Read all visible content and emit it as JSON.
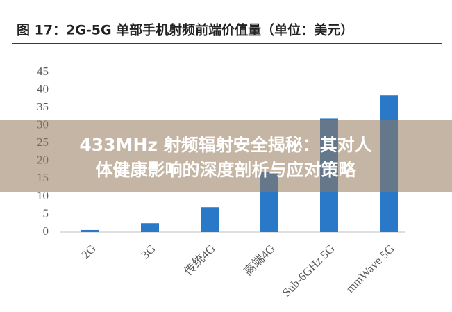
{
  "chart_data": {
    "type": "bar",
    "title": "图 17：2G-5G 单部手机射频前端价值量（单位：美元）",
    "categories": [
      "2G",
      "3G",
      "传统4G",
      "高端4G",
      "Sub-6GHz 5G",
      "mmWave 5G"
    ],
    "values": [
      0.6,
      2.5,
      7,
      17,
      32,
      38.5
    ],
    "color": "#2a78c8",
    "ylim": [
      0,
      45
    ],
    "yticks": [
      0,
      5,
      10,
      15,
      20,
      25,
      30,
      35,
      40,
      45
    ],
    "grid": false
  },
  "banner": {
    "lines": [
      "433MHz 射频辐射安全揭秘：其对人",
      "体健康影响的深度剖析与应对策略"
    ]
  }
}
